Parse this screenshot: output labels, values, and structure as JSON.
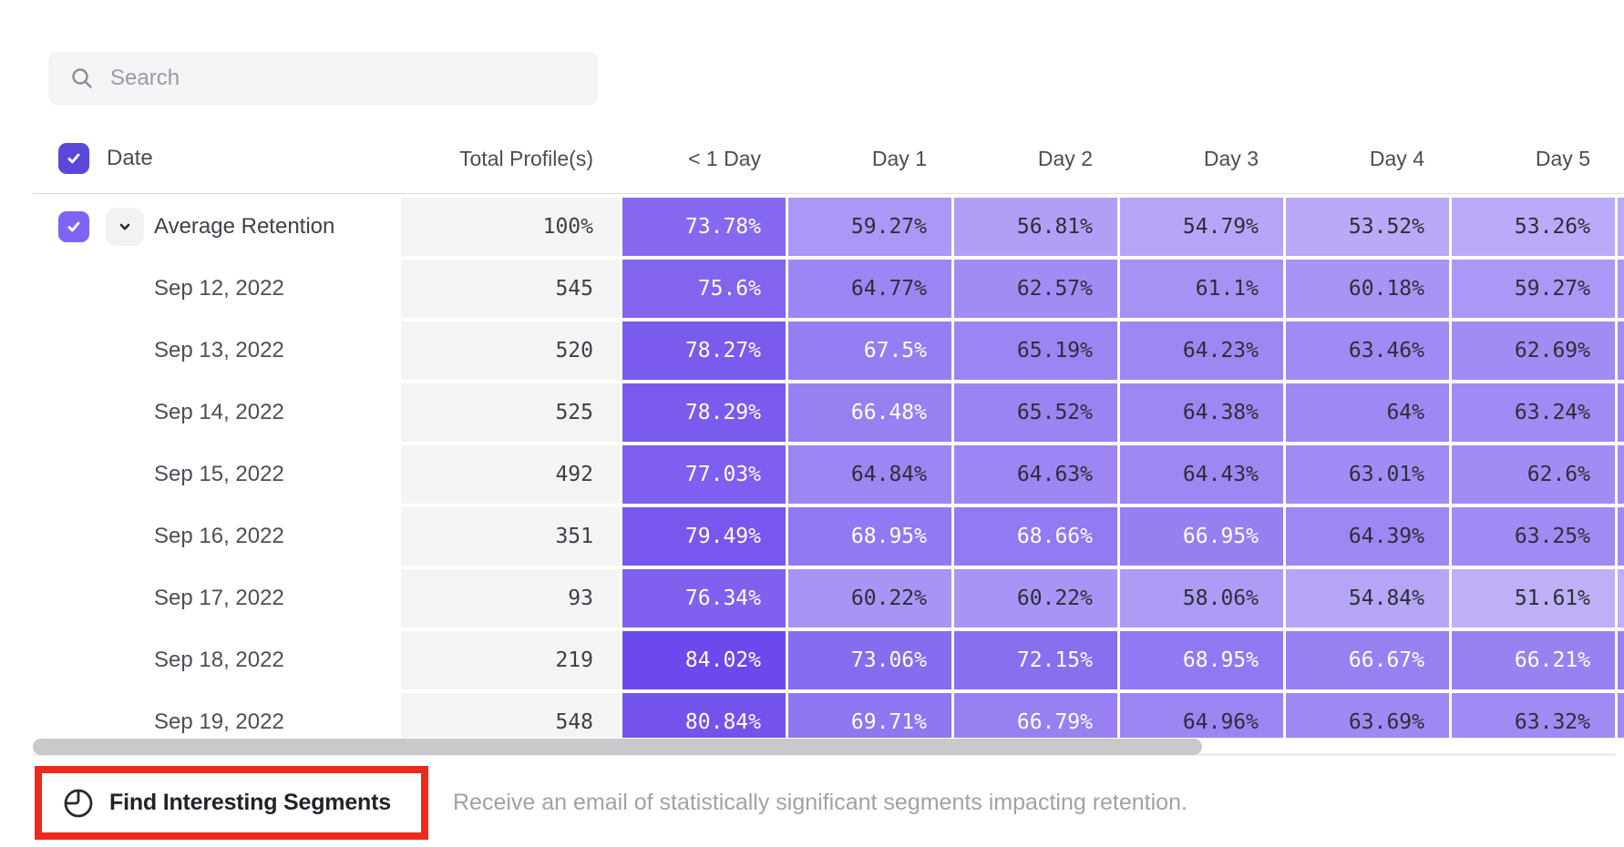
{
  "search": {
    "placeholder": "Search"
  },
  "header": {
    "date_label": "Date",
    "columns": [
      "Total Profile(s)",
      "< 1 Day",
      "Day 1",
      "Day 2",
      "Day 3",
      "Day 4",
      "Day 5"
    ]
  },
  "table": {
    "value_suffix": "%",
    "rows": [
      {
        "label": "Average Retention",
        "is_average": true,
        "total": "100%",
        "values": [
          73.78,
          59.27,
          56.81,
          54.79,
          53.52,
          53.26
        ]
      },
      {
        "label": "Sep 12, 2022",
        "is_average": false,
        "total": "545",
        "values": [
          75.6,
          64.77,
          62.57,
          61.1,
          60.18,
          59.27
        ]
      },
      {
        "label": "Sep 13, 2022",
        "is_average": false,
        "total": "520",
        "values": [
          78.27,
          67.5,
          65.19,
          64.23,
          63.46,
          62.69
        ]
      },
      {
        "label": "Sep 14, 2022",
        "is_average": false,
        "total": "525",
        "values": [
          78.29,
          66.48,
          65.52,
          64.38,
          64,
          63.24
        ]
      },
      {
        "label": "Sep 15, 2022",
        "is_average": false,
        "total": "492",
        "values": [
          77.03,
          64.84,
          64.63,
          64.43,
          63.01,
          62.6
        ]
      },
      {
        "label": "Sep 16, 2022",
        "is_average": false,
        "total": "351",
        "values": [
          79.49,
          68.95,
          68.66,
          66.95,
          64.39,
          63.25
        ]
      },
      {
        "label": "Sep 17, 2022",
        "is_average": false,
        "total": "93",
        "values": [
          76.34,
          60.22,
          60.22,
          58.06,
          54.84,
          51.61
        ]
      },
      {
        "label": "Sep 18, 2022",
        "is_average": false,
        "total": "219",
        "values": [
          84.02,
          73.06,
          72.15,
          68.95,
          66.67,
          66.21
        ]
      },
      {
        "label": "Sep 19, 2022",
        "is_average": false,
        "total": "548",
        "values": [
          80.84,
          69.71,
          66.79,
          64.96,
          63.69,
          63.32
        ]
      }
    ]
  },
  "heatmap": {
    "min": 50,
    "max": 85,
    "light_color": "#c2b4f8",
    "dark_color": "#6a46ec",
    "white_text_threshold": 66,
    "dark_text_color": "#2e2e38",
    "light_text_color": "#ffffff"
  },
  "colors": {
    "header_checkbox": "#5a48da",
    "row_checkbox": "#7e63f4",
    "highlight_red": "#ee2a1d"
  },
  "footer": {
    "button_label": "Find Interesting Segments",
    "description": "Receive an email of statistically significant segments impacting retention."
  }
}
